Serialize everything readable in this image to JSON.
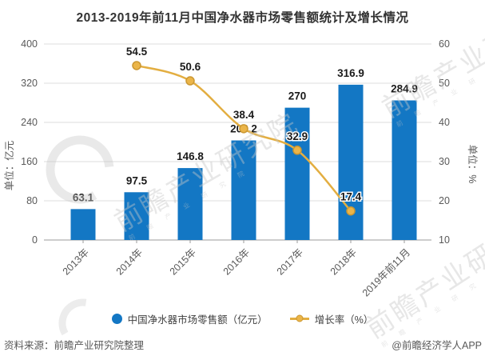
{
  "chart_data": {
    "type": "combo",
    "title": "2013-2019年前11月中国净水器市场零售额统计及增长情况",
    "categories": [
      "2013年",
      "2014年",
      "2015年",
      "2016年",
      "2017年",
      "2018年",
      "2019年前11月"
    ],
    "series": [
      {
        "name": "中国净水器市场零售额（亿元）",
        "type": "bar",
        "axis": "left",
        "color": "#1377C4",
        "values": [
          63.1,
          97.5,
          146.8,
          203.2,
          270,
          316.9,
          284.9
        ]
      },
      {
        "name": "增长率（%）",
        "type": "line",
        "axis": "right",
        "color": "#E3AE41",
        "marker_fill": "#EBB549",
        "marker_stroke": "#CB9732",
        "values": [
          null,
          54.5,
          50.6,
          38.4,
          32.9,
          17.4,
          null
        ]
      }
    ],
    "left_axis": {
      "title": "单位：亿元",
      "min": 0,
      "max": 400,
      "step": 80,
      "ticks": [
        "400",
        "320",
        "240",
        "160",
        "80",
        "0"
      ]
    },
    "right_axis": {
      "title": "单位：%",
      "min": 10,
      "max": 60,
      "step": 10,
      "ticks": [
        "60",
        "50",
        "40",
        "30",
        "20",
        "10"
      ]
    },
    "grid": true,
    "legend_position": "bottom",
    "label_color": "#1a1a1a",
    "tick_color": "#595959",
    "grid_color": "#DCDCDC",
    "axis_line_color": "#9B9B9B"
  },
  "footer": {
    "source": "资料来源：前瞻产业研究院整理",
    "brand": "@前瞻经济学人APP"
  },
  "watermark": {
    "text": "前瞻产业研究院",
    "subtext": "前 瞻 产 业 研 究 院",
    "color": "#C8C8C8"
  }
}
